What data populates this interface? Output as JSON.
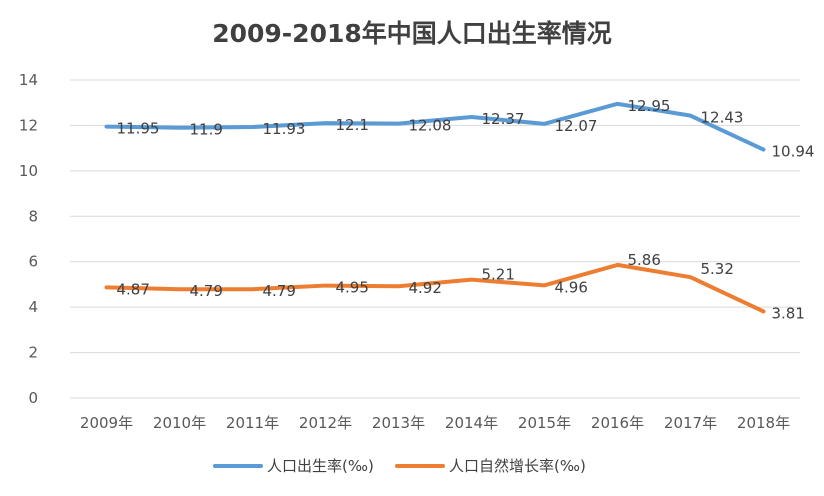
{
  "chart_data": {
    "type": "line",
    "title": "2009-2018年中国人口出生率情况",
    "xlabel": "",
    "ylabel": "",
    "categories": [
      "2009年",
      "2010年",
      "2011年",
      "2012年",
      "2013年",
      "2014年",
      "2015年",
      "2016年",
      "2017年",
      "2018年"
    ],
    "ylim": [
      0,
      14
    ],
    "yticks": [
      "0",
      "2",
      "4",
      "6",
      "8",
      "10",
      "12",
      "14"
    ],
    "grid": true,
    "legend_position": "bottom",
    "series": [
      {
        "name": "人口出生率(‰)",
        "color": "#5b9bd5",
        "values": [
          11.95,
          11.9,
          11.93,
          12.1,
          12.08,
          12.37,
          12.07,
          12.95,
          12.43,
          10.94
        ],
        "labels": [
          "11.95",
          "11.9",
          "11.93",
          "12.1",
          "12.08",
          "12.37",
          "12.07",
          "12.95",
          "12.43",
          "10.94"
        ]
      },
      {
        "name": "人口自然增长率(‰)",
        "color": "#ed7d31",
        "values": [
          4.87,
          4.79,
          4.79,
          4.95,
          4.92,
          5.21,
          4.96,
          5.86,
          5.32,
          3.81
        ],
        "labels": [
          "4.87",
          "4.79",
          "4.79",
          "4.95",
          "4.92",
          "5.21",
          "4.96",
          "5.86",
          "5.32",
          "3.81"
        ]
      }
    ]
  }
}
